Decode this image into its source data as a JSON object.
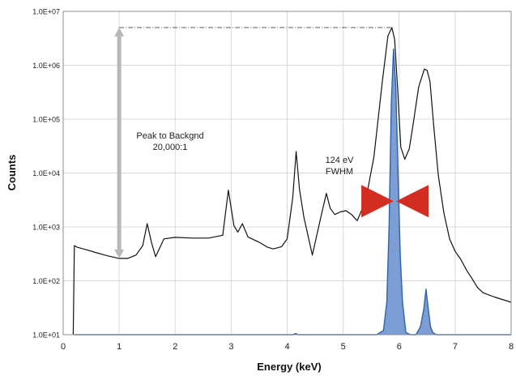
{
  "chart_data": {
    "type": "line",
    "title": "",
    "xlabel": "Energy (keV)",
    "ylabel": "Counts",
    "y_scale": "log",
    "xlim": [
      0,
      8
    ],
    "ylim": [
      10,
      10000000
    ],
    "grid": true,
    "x_ticks": [
      "0",
      "1",
      "2",
      "3",
      "4",
      "5",
      "6",
      "7",
      "8"
    ],
    "y_ticks": [
      "1.0E+01",
      "1.0E+02",
      "1.0E+03",
      "1.0E+04",
      "1.0E+05",
      "1.0E+06",
      "1.0E+07"
    ],
    "series": [
      {
        "color": "#111111",
        "x": [
          0.18,
          0.2,
          0.25,
          0.4,
          0.6,
          0.8,
          1.0,
          1.15,
          1.3,
          1.42,
          1.5,
          1.58,
          1.65,
          1.72,
          1.8,
          2.0,
          2.3,
          2.6,
          2.85,
          2.95,
          3.05,
          3.12,
          3.2,
          3.3,
          3.5,
          3.65,
          3.75,
          3.9,
          4.0,
          4.1,
          4.16,
          4.22,
          4.3,
          4.45,
          4.6,
          4.7,
          4.77,
          4.85,
          4.95,
          5.05,
          5.15,
          5.25,
          5.4,
          5.55,
          5.7,
          5.8,
          5.87,
          5.92,
          5.97,
          6.03,
          6.1,
          6.18,
          6.25,
          6.35,
          6.45,
          6.5,
          6.55,
          6.62,
          6.7,
          6.8,
          6.9,
          7.0,
          7.1,
          7.2,
          7.3,
          7.4,
          7.5,
          7.7,
          8.0
        ],
        "values": [
          10,
          450,
          420,
          380,
          330,
          290,
          260,
          260,
          300,
          450,
          1150,
          500,
          280,
          400,
          600,
          640,
          620,
          620,
          700,
          4800,
          1050,
          800,
          1150,
          650,
          520,
          420,
          390,
          430,
          600,
          3500,
          25000,
          5000,
          1500,
          300,
          1500,
          4200,
          2200,
          1700,
          1900,
          2000,
          1700,
          1300,
          3000,
          20000,
          500000,
          3500000,
          5000000,
          3000000,
          400000,
          30000,
          18000,
          28000,
          80000,
          400000,
          850000,
          800000,
          500000,
          70000,
          9000,
          1800,
          600,
          350,
          250,
          160,
          110,
          75,
          60,
          50,
          40
        ]
      },
      {
        "color": "#2f63a8",
        "fill": "#6f94cf",
        "x": [
          0.2,
          4.1,
          4.15,
          4.2,
          5.6,
          5.72,
          5.78,
          5.82,
          5.86,
          5.9,
          5.94,
          5.98,
          6.02,
          6.06,
          6.12,
          6.2,
          6.3,
          6.38,
          6.44,
          6.48,
          6.52,
          6.56,
          6.6,
          6.66,
          6.75,
          8.0
        ],
        "values": [
          10,
          10,
          10.5,
          10,
          10,
          12,
          40,
          1000,
          200000,
          2000000,
          400000,
          10000,
          300,
          40,
          11,
          10,
          10,
          14,
          30,
          70,
          30,
          14,
          11,
          10,
          10,
          10
        ]
      }
    ],
    "annotations": {
      "peak_label_line1": "Peak to Backgnd",
      "peak_label_line2": "20,000:1",
      "fwhm_label_line1": "124 eV",
      "fwhm_label_line2": "FWHM"
    },
    "arrow_color": "#b8b8b8",
    "fwhm_arrow_color": "#d42b23",
    "grid_color": "#d9d9d9"
  }
}
